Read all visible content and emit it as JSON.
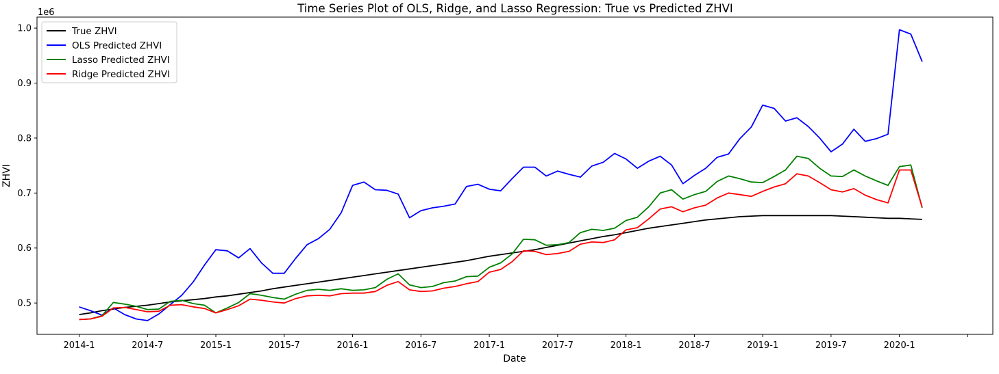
{
  "chart_data": {
    "type": "line",
    "title": "Time Series Plot of OLS, Ridge, and Lasso Regression: True vs Predicted ZHVI",
    "xlabel": "Date",
    "ylabel": "ZHVI",
    "y_offset_label": "1e6",
    "x_tick_labels": [
      "2014-1",
      "2014-7",
      "2015-1",
      "2015-7",
      "2016-1",
      "2016-7",
      "2017-1",
      "2017-7",
      "2018-1",
      "2018-7",
      "2019-1",
      "2019-7",
      "2020-1"
    ],
    "y_tick_labels": [
      "0.5",
      "0.6",
      "0.7",
      "0.8",
      "0.9",
      "1.0"
    ],
    "y_ticks": [
      0.5,
      0.6,
      0.7,
      0.8,
      0.9,
      1.0
    ],
    "ylim": [
      0.443,
      1.02
    ],
    "grid": false,
    "legend_position": "upper-left",
    "x": [
      "2014-01",
      "2014-02",
      "2014-03",
      "2014-04",
      "2014-05",
      "2014-06",
      "2014-07",
      "2014-08",
      "2014-09",
      "2014-10",
      "2014-11",
      "2014-12",
      "2015-01",
      "2015-02",
      "2015-03",
      "2015-04",
      "2015-05",
      "2015-06",
      "2015-07",
      "2015-08",
      "2015-09",
      "2015-10",
      "2015-11",
      "2015-12",
      "2016-01",
      "2016-02",
      "2016-03",
      "2016-04",
      "2016-05",
      "2016-06",
      "2016-07",
      "2016-08",
      "2016-09",
      "2016-10",
      "2016-11",
      "2016-12",
      "2017-01",
      "2017-02",
      "2017-03",
      "2017-04",
      "2017-05",
      "2017-06",
      "2017-07",
      "2017-08",
      "2017-09",
      "2017-10",
      "2017-11",
      "2017-12",
      "2018-01",
      "2018-02",
      "2018-03",
      "2018-04",
      "2018-05",
      "2018-06",
      "2018-07",
      "2018-08",
      "2018-09",
      "2018-10",
      "2018-11",
      "2018-12",
      "2019-01",
      "2019-02",
      "2019-03",
      "2019-04",
      "2019-05",
      "2019-06",
      "2019-07",
      "2019-08",
      "2019-09",
      "2019-10",
      "2019-11",
      "2019-12",
      "2020-01",
      "2020-02",
      "2020-03"
    ],
    "series": [
      {
        "name": "True ZHVI",
        "color": "#000000",
        "values": [
          0.479,
          0.482,
          0.486,
          0.489,
          0.492,
          0.494,
          0.496,
          0.499,
          0.502,
          0.504,
          0.506,
          0.508,
          0.511,
          0.513,
          0.516,
          0.519,
          0.522,
          0.526,
          0.529,
          0.532,
          0.535,
          0.538,
          0.541,
          0.544,
          0.547,
          0.55,
          0.553,
          0.556,
          0.559,
          0.562,
          0.565,
          0.568,
          0.571,
          0.574,
          0.577,
          0.581,
          0.585,
          0.588,
          0.591,
          0.594,
          0.597,
          0.601,
          0.605,
          0.609,
          0.613,
          0.617,
          0.621,
          0.624,
          0.628,
          0.632,
          0.636,
          0.639,
          0.642,
          0.645,
          0.648,
          0.651,
          0.653,
          0.655,
          0.657,
          0.658,
          0.659,
          0.659,
          0.659,
          0.659,
          0.659,
          0.659,
          0.659,
          0.658,
          0.657,
          0.656,
          0.655,
          0.654,
          0.654,
          0.653,
          0.652
        ]
      },
      {
        "name": "OLS Predicted ZHVI",
        "color": "#0000ff",
        "values": [
          0.493,
          0.486,
          0.478,
          0.491,
          0.479,
          0.471,
          0.468,
          0.48,
          0.497,
          0.514,
          0.538,
          0.569,
          0.597,
          0.595,
          0.582,
          0.599,
          0.573,
          0.554,
          0.554,
          0.581,
          0.606,
          0.617,
          0.634,
          0.664,
          0.714,
          0.72,
          0.706,
          0.705,
          0.698,
          0.655,
          0.668,
          0.673,
          0.676,
          0.68,
          0.712,
          0.716,
          0.707,
          0.704,
          0.726,
          0.747,
          0.747,
          0.731,
          0.74,
          0.734,
          0.729,
          0.749,
          0.756,
          0.772,
          0.762,
          0.745,
          0.758,
          0.767,
          0.751,
          0.717,
          0.732,
          0.745,
          0.765,
          0.771,
          0.799,
          0.82,
          0.86,
          0.854,
          0.831,
          0.837,
          0.821,
          0.8,
          0.775,
          0.789,
          0.816,
          0.794,
          0.799,
          0.807,
          0.997,
          0.989,
          0.939
        ]
      },
      {
        "name": "Lasso Predicted ZHVI",
        "color": "#008000",
        "values": [
          0.47,
          0.471,
          0.477,
          0.501,
          0.498,
          0.494,
          0.488,
          0.489,
          0.503,
          0.505,
          0.499,
          0.496,
          0.482,
          0.491,
          0.501,
          0.517,
          0.514,
          0.51,
          0.507,
          0.516,
          0.523,
          0.525,
          0.523,
          0.526,
          0.523,
          0.524,
          0.528,
          0.543,
          0.553,
          0.533,
          0.528,
          0.53,
          0.537,
          0.54,
          0.548,
          0.549,
          0.565,
          0.573,
          0.589,
          0.616,
          0.615,
          0.605,
          0.606,
          0.61,
          0.628,
          0.634,
          0.632,
          0.636,
          0.65,
          0.656,
          0.675,
          0.7,
          0.706,
          0.689,
          0.697,
          0.703,
          0.721,
          0.731,
          0.726,
          0.72,
          0.719,
          0.73,
          0.742,
          0.767,
          0.763,
          0.745,
          0.731,
          0.73,
          0.742,
          0.731,
          0.722,
          0.714,
          0.748,
          0.751,
          0.673
        ]
      },
      {
        "name": "Ridge Predicted ZHVI",
        "color": "#ff0000",
        "values": [
          0.47,
          0.471,
          0.476,
          0.491,
          0.492,
          0.488,
          0.484,
          0.485,
          0.496,
          0.497,
          0.493,
          0.49,
          0.482,
          0.488,
          0.495,
          0.507,
          0.505,
          0.502,
          0.5,
          0.508,
          0.513,
          0.514,
          0.513,
          0.517,
          0.518,
          0.518,
          0.521,
          0.532,
          0.539,
          0.524,
          0.521,
          0.522,
          0.527,
          0.53,
          0.535,
          0.539,
          0.556,
          0.561,
          0.575,
          0.595,
          0.594,
          0.588,
          0.59,
          0.594,
          0.607,
          0.611,
          0.61,
          0.615,
          0.633,
          0.637,
          0.653,
          0.671,
          0.675,
          0.666,
          0.673,
          0.678,
          0.691,
          0.7,
          0.697,
          0.694,
          0.703,
          0.711,
          0.717,
          0.735,
          0.731,
          0.719,
          0.706,
          0.702,
          0.708,
          0.696,
          0.688,
          0.682,
          0.742,
          0.742,
          0.674
        ]
      }
    ]
  }
}
